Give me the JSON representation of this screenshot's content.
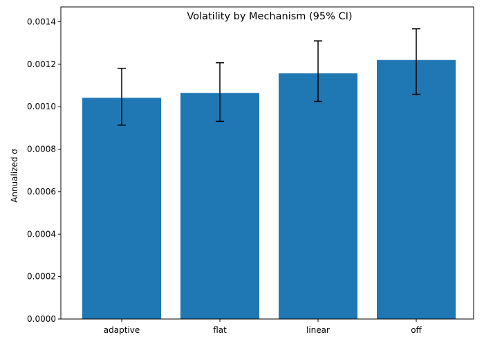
{
  "chart_data": {
    "type": "bar",
    "title": "Volatility by Mechanism (95% CI)",
    "xlabel": "",
    "ylabel": "Annualized σ",
    "categories": [
      "adaptive",
      "flat",
      "linear",
      "off"
    ],
    "values": [
      0.001042,
      0.001065,
      0.001157,
      0.00122
    ],
    "error_low": [
      0.000913,
      0.000931,
      0.001025,
      0.001058
    ],
    "error_high": [
      0.001181,
      0.001207,
      0.00131,
      0.001367
    ],
    "ylim": [
      0,
      0.00147
    ],
    "yticks": [
      0,
      0.0002,
      0.0004,
      0.0006,
      0.0008,
      0.001,
      0.0012,
      0.0014
    ],
    "ytick_labels": [
      "0.0000",
      "0.0002",
      "0.0004",
      "0.0006",
      "0.0008",
      "0.0010",
      "0.0012",
      "0.0014"
    ],
    "bar_color": "#1f77b4",
    "error_color": "#000000",
    "grid": false,
    "legend": "none"
  }
}
